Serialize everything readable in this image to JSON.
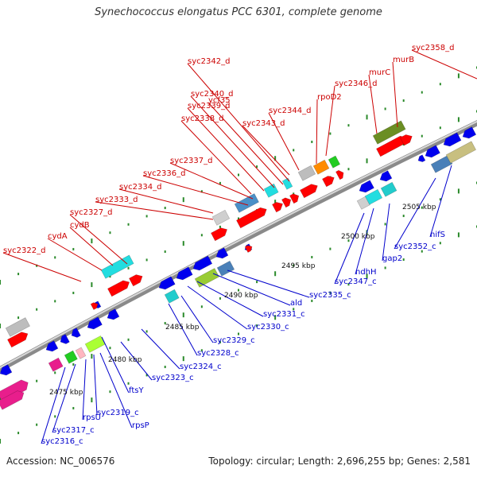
{
  "title": "Synechococcus elongatus PCC 6301, complete genome",
  "footer": {
    "accession": "Accession: NC_006576",
    "summary": "Topology: circular; Length: 2,696,255 bp; Genes: 2,581"
  },
  "ruler_labels": [
    "2475 kbp",
    "2480 kbp",
    "2485 kbp",
    "2490 kbp",
    "2495 kbp",
    "2500 kbp",
    "2505 kbp"
  ],
  "genes_top": [
    "syc2322_d",
    "cydA",
    "cydB",
    "syc2327_d",
    "syc2333_d",
    "syc2334_d",
    "syc2336_d",
    "syc2337_d",
    "syc2338_d",
    "syc2339_d",
    "syc2340_d",
    "ycf35",
    "syc2342_d",
    "syc2343_d",
    "syc2344_d",
    "rpoD2",
    "syc2346_d",
    "murC",
    "murB",
    "syc2358_d"
  ],
  "genes_bottom": [
    "syc2316_c",
    "syc2317_c",
    "rpsU",
    "syc2319_c",
    "rpsP",
    "ftsY",
    "syc2323_c",
    "syc2324_c",
    "syc2328_c",
    "syc2329_c",
    "syc2330_c",
    "syc2331_c",
    "ald",
    "syc2335_c",
    "syc2347_c",
    "ndhH",
    "gap2",
    "syc2352_c",
    "nifS"
  ],
  "colors": {
    "forward_label": "#cc0000",
    "reverse_label": "#0000cc",
    "backbone": "#8a8a8a",
    "forward_arrow": "#ff0000",
    "reverse_arrow": "#0000ee",
    "tick": "#2a8a2a"
  }
}
